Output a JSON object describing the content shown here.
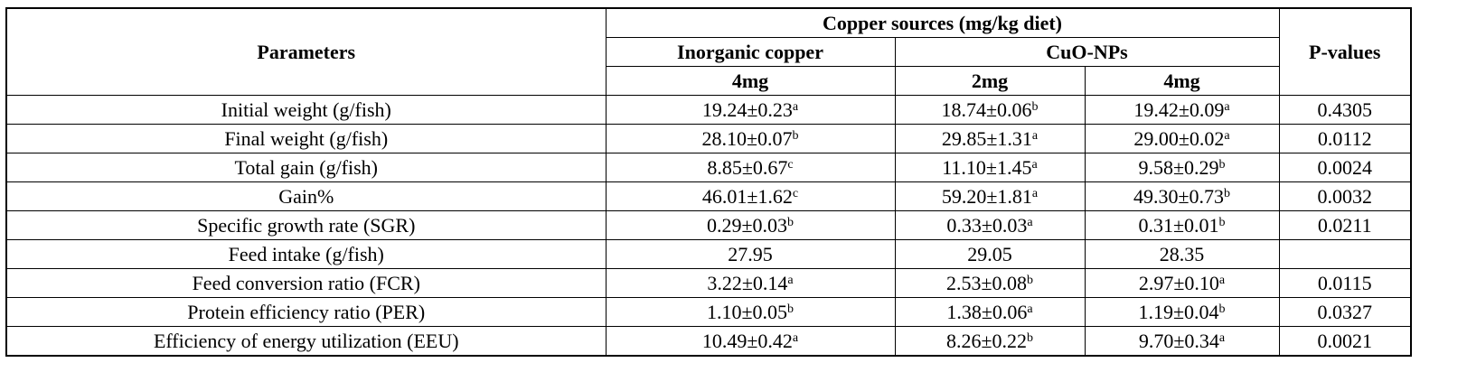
{
  "header": {
    "group": "Copper sources (mg/kg diet)",
    "parameters": "Parameters",
    "p_values": "P-values",
    "inorganic": "Inorganic copper",
    "cuo": "CuO-NPs",
    "dose_inorganic": "4mg",
    "dose_cuo_1": "2mg",
    "dose_cuo_2": "4mg"
  },
  "rows": [
    {
      "parameter": "Initial weight (g/fish)",
      "cells": [
        {
          "text": "19.24±0.23",
          "sup": "a"
        },
        {
          "text": "18.74±0.06",
          "sup": "b"
        },
        {
          "text": "19.42±0.09",
          "sup": "a"
        }
      ],
      "p_value": "0.4305"
    },
    {
      "parameter": "Final weight (g/fish)",
      "cells": [
        {
          "text": "28.10±0.07",
          "sup": "b"
        },
        {
          "text": "29.85±1.31",
          "sup": "a"
        },
        {
          "text": "29.00±0.02",
          "sup": "a"
        }
      ],
      "p_value": "0.0112"
    },
    {
      "parameter": "Total gain (g/fish)",
      "cells": [
        {
          "text": "8.85±0.67",
          "sup": "c"
        },
        {
          "text": "11.10±1.45",
          "sup": "a"
        },
        {
          "text": "9.58±0.29",
          "sup": "b"
        }
      ],
      "p_value": "0.0024"
    },
    {
      "parameter": "Gain%",
      "cells": [
        {
          "text": "46.01±1.62",
          "sup": "c"
        },
        {
          "text": "59.20±1.81",
          "sup": "a"
        },
        {
          "text": "49.30±0.73",
          "sup": "b"
        }
      ],
      "p_value": "0.0032"
    },
    {
      "parameter": "Specific growth rate (SGR)",
      "cells": [
        {
          "text": "0.29±0.03",
          "sup": "b"
        },
        {
          "text": "0.33±0.03",
          "sup": "a"
        },
        {
          "text": "0.31±0.01",
          "sup": "b"
        }
      ],
      "p_value": "0.0211"
    },
    {
      "parameter": "Feed intake (g/fish)",
      "cells": [
        {
          "text": "27.95"
        },
        {
          "text": "29.05"
        },
        {
          "text": "28.35"
        }
      ]
    },
    {
      "parameter": "Feed conversion ratio (FCR)",
      "cells": [
        {
          "text": "3.22±0.14",
          "sup": "a"
        },
        {
          "text": "2.53±0.08",
          "sup": "b"
        },
        {
          "text": "2.97±0.10",
          "sup": "a"
        }
      ],
      "p_value": "0.0115"
    },
    {
      "parameter": "Protein efficiency ratio (PER)",
      "cells": [
        {
          "text": "1.10±0.05",
          "sup": "b"
        },
        {
          "text": "1.38±0.06",
          "sup": "a"
        },
        {
          "text": "1.19±0.04",
          "sup": "b"
        }
      ],
      "p_value": "0.0327"
    },
    {
      "parameter": "Efficiency of energy utilization (EEU)",
      "cells": [
        {
          "text": "10.49±0.42",
          "sup": "a"
        },
        {
          "text": "8.26±0.22",
          "sup": "b"
        },
        {
          "text": "9.70±0.34",
          "sup": "a"
        }
      ],
      "p_value": "0.0021"
    }
  ]
}
